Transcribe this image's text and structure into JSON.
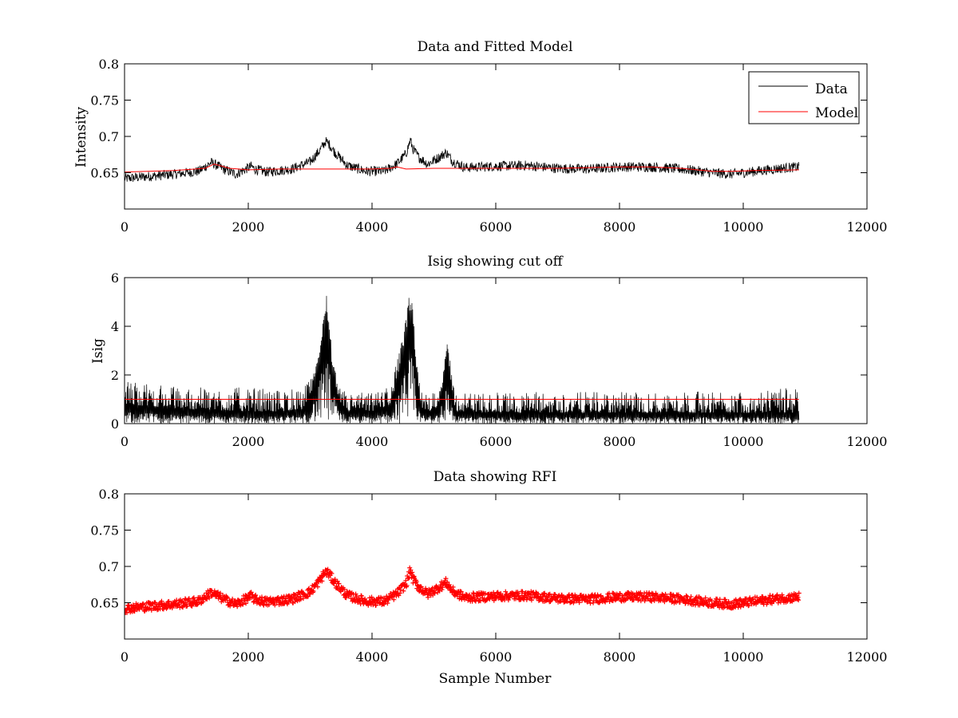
{
  "figure": {
    "background": "#ffffff"
  },
  "chart_data": [
    {
      "type": "line",
      "title": "Data and Fitted Model",
      "xlabel": "",
      "ylabel": "Intensity",
      "xlim": [
        0,
        12000
      ],
      "ylim": [
        0.6,
        0.8
      ],
      "xticks": [
        "0",
        "2000",
        "4000",
        "6000",
        "8000",
        "10000",
        "12000"
      ],
      "yticks": [
        "0.65",
        "0.7",
        "0.75",
        "0.8"
      ],
      "grid": false,
      "legend": {
        "position": "top-right",
        "entries": [
          "Data",
          "Model"
        ]
      },
      "series": [
        {
          "name": "Data",
          "color": "#000000",
          "style": "noisy-line",
          "noise": 0.007,
          "x": [
            0,
            400,
            800,
            1200,
            1400,
            1450,
            1600,
            1800,
            2050,
            2100,
            2300,
            2700,
            3000,
            3150,
            3250,
            3300,
            3400,
            3600,
            3900,
            4200,
            4400,
            4550,
            4620,
            4660,
            4750,
            4900,
            5100,
            5200,
            5300,
            5500,
            6000,
            6500,
            7000,
            7500,
            8000,
            8500,
            9000,
            9500,
            9800,
            10200,
            10600,
            10900
          ],
          "y": [
            0.642,
            0.645,
            0.648,
            0.652,
            0.664,
            0.662,
            0.655,
            0.648,
            0.659,
            0.655,
            0.651,
            0.655,
            0.665,
            0.68,
            0.693,
            0.69,
            0.678,
            0.66,
            0.652,
            0.652,
            0.662,
            0.676,
            0.695,
            0.683,
            0.672,
            0.662,
            0.672,
            0.678,
            0.666,
            0.657,
            0.659,
            0.66,
            0.656,
            0.655,
            0.658,
            0.658,
            0.655,
            0.65,
            0.648,
            0.652,
            0.656,
            0.658
          ]
        },
        {
          "name": "Model",
          "color": "#ff0000",
          "style": "line",
          "x": [
            0,
            800,
            1300,
            1450,
            1700,
            2000,
            2500,
            3000,
            3500,
            4000,
            4300,
            4400,
            4550,
            5000,
            6000,
            7000,
            8000,
            8500,
            9000,
            9500,
            9800,
            10200,
            10900
          ],
          "y": [
            0.651,
            0.653,
            0.656,
            0.662,
            0.656,
            0.654,
            0.655,
            0.655,
            0.655,
            0.655,
            0.656,
            0.658,
            0.655,
            0.656,
            0.656,
            0.656,
            0.658,
            0.658,
            0.656,
            0.652,
            0.652,
            0.653,
            0.654
          ]
        }
      ]
    },
    {
      "type": "line",
      "title": "Isig showing cut off",
      "xlabel": "",
      "ylabel": "Isig",
      "xlim": [
        0,
        12000
      ],
      "ylim": [
        0,
        6
      ],
      "xticks": [
        "0",
        "2000",
        "4000",
        "6000",
        "8000",
        "10000",
        "12000"
      ],
      "yticks": [
        "0",
        "2",
        "4",
        "6"
      ],
      "grid": false,
      "series": [
        {
          "color": "#000000",
          "style": "noisy-spikes",
          "x": [
            0,
            500,
            1000,
            1500,
            2000,
            2500,
            2900,
            3050,
            3150,
            3250,
            3300,
            3350,
            3450,
            3600,
            4000,
            4300,
            4400,
            4500,
            4620,
            4660,
            4720,
            4800,
            5000,
            5100,
            5200,
            5260,
            5350,
            6000,
            7000,
            8000,
            9000,
            10000,
            10900
          ],
          "y": [
            0.8,
            0.7,
            0.6,
            0.55,
            0.5,
            0.5,
            0.6,
            1.5,
            2.8,
            4.6,
            4.0,
            2.5,
            1.0,
            0.5,
            0.5,
            0.8,
            1.8,
            3.0,
            4.8,
            4.2,
            2.0,
            0.6,
            0.5,
            1.0,
            2.6,
            2.0,
            0.5,
            0.45,
            0.45,
            0.45,
            0.45,
            0.45,
            0.45
          ],
          "envelope": [
            1.8,
            1.6,
            1.5,
            1.5,
            1.5,
            1.4,
            1.5,
            2.0,
            3.0,
            5.6,
            4.8,
            3.0,
            1.5,
            1.3,
            1.3,
            1.6,
            2.6,
            3.6,
            5.6,
            4.8,
            2.6,
            1.3,
            1.3,
            1.6,
            3.4,
            2.8,
            1.3,
            1.3,
            1.3,
            1.3,
            1.3,
            1.4,
            1.5
          ]
        },
        {
          "color": "#ff0000",
          "style": "line",
          "x": [
            0,
            10900
          ],
          "y": [
            1.0,
            1.0
          ]
        }
      ]
    },
    {
      "type": "scatter",
      "title": "Data showing RFI",
      "xlabel": "Sample Number",
      "ylabel": "",
      "xlim": [
        0,
        12000
      ],
      "ylim": [
        0.6,
        0.8
      ],
      "xticks": [
        "0",
        "2000",
        "4000",
        "6000",
        "8000",
        "10000",
        "12000"
      ],
      "yticks": [
        "0.65",
        "0.7",
        "0.75",
        "0.8"
      ],
      "grid": false,
      "series": [
        {
          "color": "#ff0000",
          "marker": "+",
          "noise": 0.006,
          "x": [
            0,
            400,
            800,
            1200,
            1400,
            1450,
            1600,
            1800,
            2050,
            2100,
            2300,
            2700,
            3000,
            3150,
            3250,
            3300,
            3400,
            3600,
            3900,
            4200,
            4400,
            4550,
            4620,
            4660,
            4750,
            4900,
            5100,
            5200,
            5300,
            5500,
            6000,
            6500,
            7000,
            7500,
            8000,
            8500,
            9000,
            9500,
            9800,
            10200,
            10600,
            10900
          ],
          "y": [
            0.642,
            0.645,
            0.648,
            0.652,
            0.664,
            0.662,
            0.655,
            0.648,
            0.659,
            0.655,
            0.651,
            0.655,
            0.665,
            0.68,
            0.693,
            0.69,
            0.678,
            0.66,
            0.652,
            0.652,
            0.662,
            0.676,
            0.695,
            0.683,
            0.672,
            0.662,
            0.672,
            0.678,
            0.666,
            0.657,
            0.659,
            0.66,
            0.656,
            0.655,
            0.658,
            0.658,
            0.655,
            0.65,
            0.648,
            0.652,
            0.656,
            0.658
          ]
        }
      ]
    }
  ]
}
